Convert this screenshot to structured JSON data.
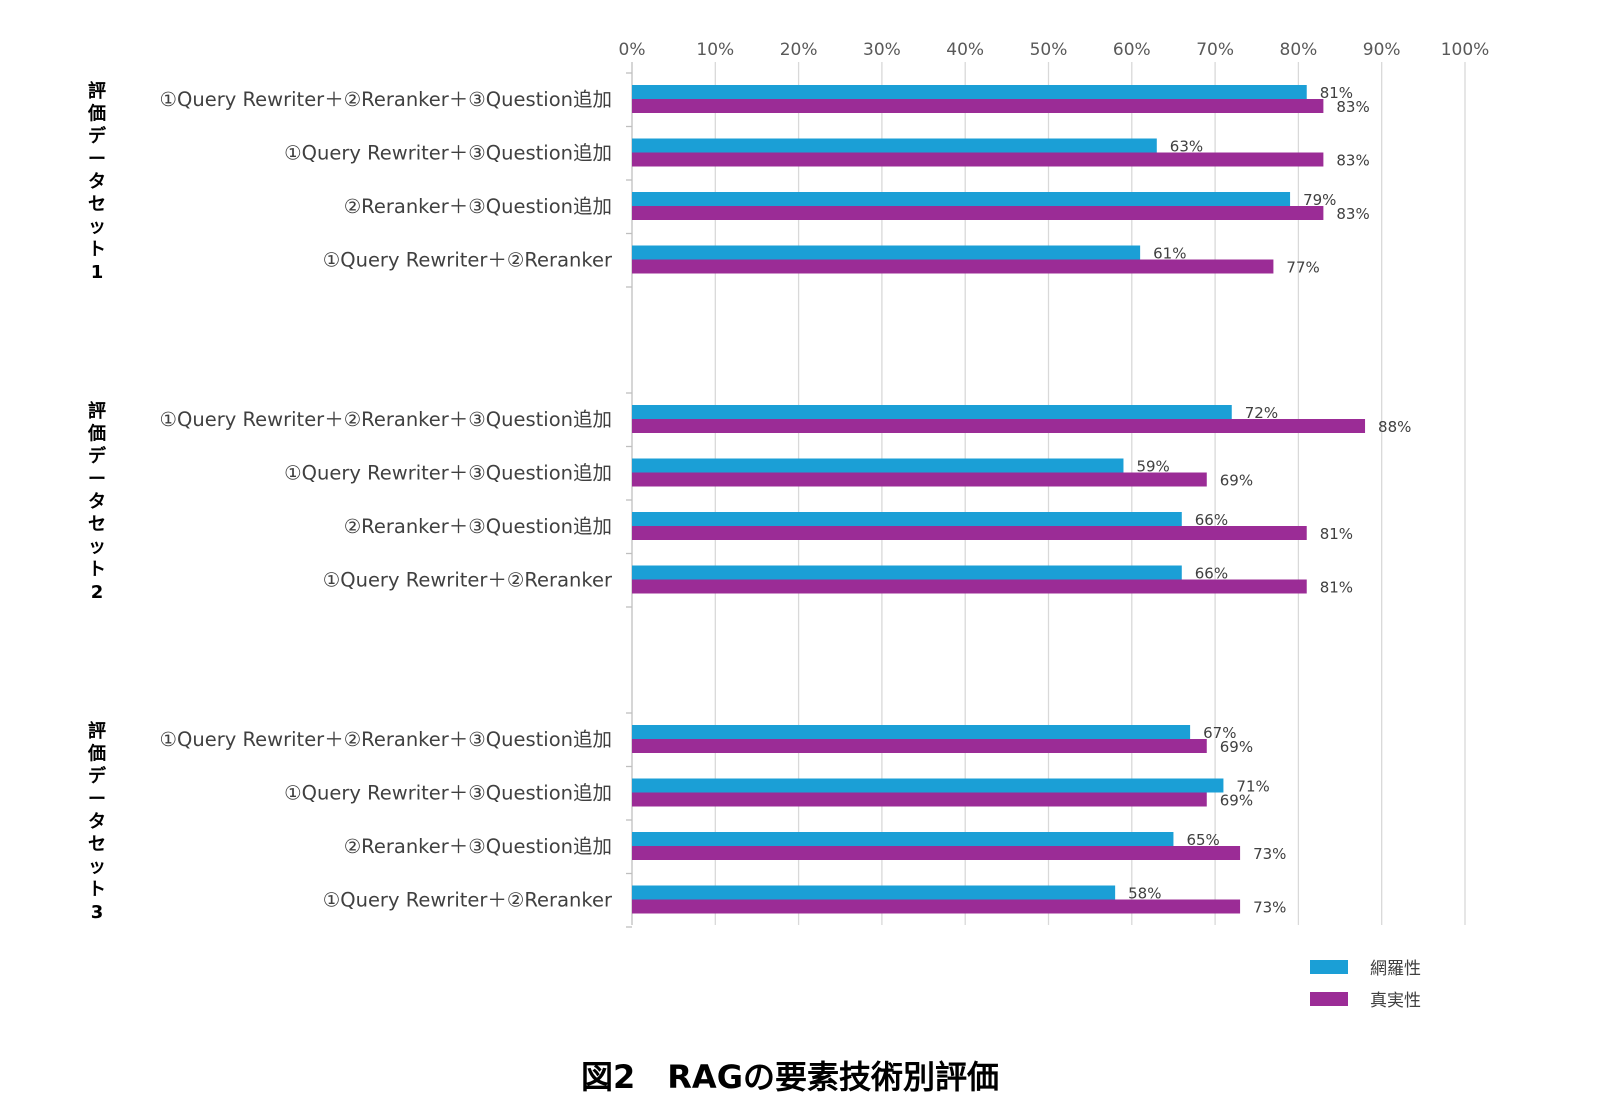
{
  "chart_data": {
    "type": "bar",
    "orientation": "horizontal",
    "caption": "図2　RAGの要素技術別評価",
    "xlim": [
      0,
      100
    ],
    "x_ticks": [
      "0%",
      "10%",
      "20%",
      "30%",
      "40%",
      "50%",
      "60%",
      "70%",
      "80%",
      "90%",
      "100%"
    ],
    "grid": true,
    "legend_position": "bottom-right",
    "series": [
      {
        "name": "網羅性",
        "color": "#1b9fd6"
      },
      {
        "name": "真実性",
        "color": "#9b2c96"
      }
    ],
    "groups": [
      {
        "label": "評価データセット1",
        "rows": [
          {
            "category": "①Query Rewriter＋②Reranker＋③Question追加",
            "values": [
              81,
              83
            ],
            "labels": [
              "81%",
              "83%"
            ]
          },
          {
            "category": "①Query Rewriter＋③Question追加",
            "values": [
              63,
              83
            ],
            "labels": [
              "63%",
              "83%"
            ]
          },
          {
            "category": "②Reranker＋③Question追加",
            "values": [
              79,
              83
            ],
            "labels": [
              "79%",
              "83%"
            ]
          },
          {
            "category": "①Query Rewriter＋②Reranker",
            "values": [
              61,
              77
            ],
            "labels": [
              "61%",
              "77%"
            ]
          }
        ]
      },
      {
        "label": "評価データセット2",
        "rows": [
          {
            "category": "①Query Rewriter＋②Reranker＋③Question追加",
            "values": [
              72,
              88
            ],
            "labels": [
              "72%",
              "88%"
            ]
          },
          {
            "category": "①Query Rewriter＋③Question追加",
            "values": [
              59,
              69
            ],
            "labels": [
              "59%",
              "69%"
            ]
          },
          {
            "category": "②Reranker＋③Question追加",
            "values": [
              66,
              81
            ],
            "labels": [
              "66%",
              "81%"
            ]
          },
          {
            "category": "①Query Rewriter＋②Reranker",
            "values": [
              66,
              81
            ],
            "labels": [
              "66%",
              "81%"
            ]
          }
        ]
      },
      {
        "label": "評価データセット3",
        "rows": [
          {
            "category": "①Query Rewriter＋②Reranker＋③Question追加",
            "values": [
              67,
              69
            ],
            "labels": [
              "67%",
              "69%"
            ]
          },
          {
            "category": "①Query Rewriter＋③Question追加",
            "values": [
              71,
              69
            ],
            "labels": [
              "71%",
              "69%"
            ]
          },
          {
            "category": "②Reranker＋③Question追加",
            "values": [
              65,
              73
            ],
            "labels": [
              "65%",
              "73%"
            ]
          },
          {
            "category": "①Query Rewriter＋②Reranker",
            "values": [
              58,
              73
            ],
            "labels": [
              "58%",
              "73%"
            ]
          }
        ]
      }
    ]
  }
}
